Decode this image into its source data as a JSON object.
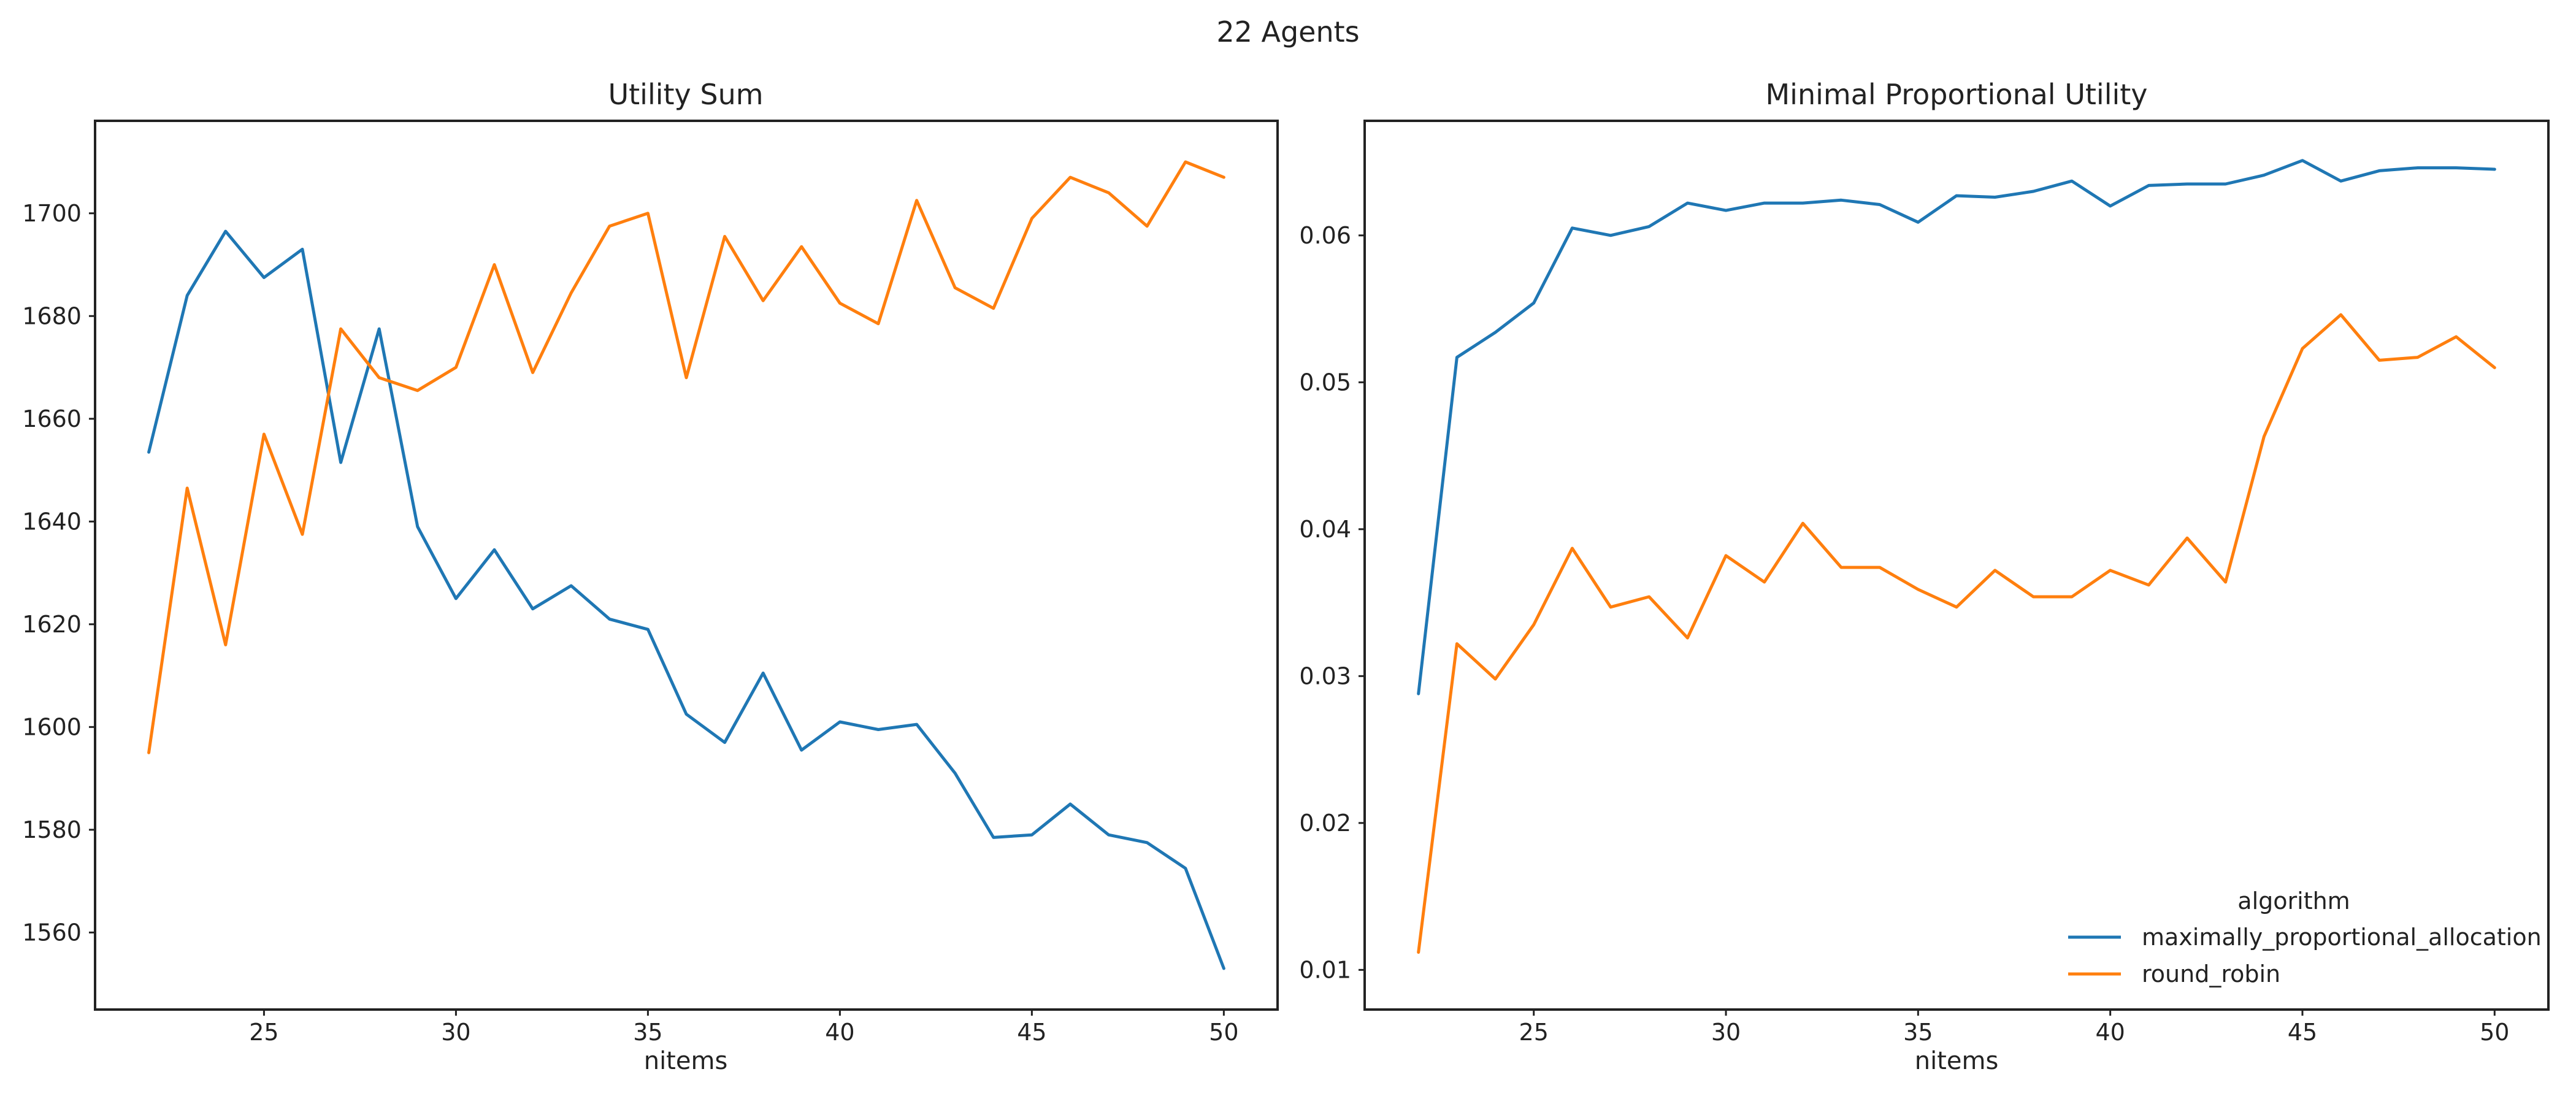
{
  "figure": {
    "suptitle": "22 Agents"
  },
  "colors": {
    "maximally_proportional_allocation": "#1f77b4",
    "round_robin": "#ff7f0e"
  },
  "chart_data": [
    {
      "type": "line",
      "title": "Utility Sum",
      "xlabel": "nitems",
      "ylabel": "",
      "xlim": [
        20.6,
        51.4
      ],
      "ylim": [
        1545,
        1718
      ],
      "xticks": [
        25,
        30,
        35,
        40,
        45,
        50
      ],
      "yticks": [
        1560,
        1580,
        1600,
        1620,
        1640,
        1660,
        1680,
        1700
      ],
      "grid": false,
      "x": [
        22,
        23,
        24,
        25,
        26,
        27,
        28,
        29,
        30,
        31,
        32,
        33,
        34,
        35,
        36,
        37,
        38,
        39,
        40,
        41,
        42,
        43,
        44,
        45,
        46,
        47,
        48,
        49,
        50
      ],
      "series": [
        {
          "name": "maximally_proportional_allocation",
          "values": [
            1653.5,
            1684,
            1696.5,
            1687.5,
            1693,
            1651.5,
            1677.5,
            1639,
            1625,
            1634.5,
            1623,
            1627.5,
            1621,
            1619,
            1602.5,
            1597,
            1610.5,
            1595.5,
            1601,
            1599.5,
            1600.5,
            1591,
            1578.5,
            1579,
            1585,
            1579,
            1577.5,
            1572.5,
            1553
          ]
        },
        {
          "name": "round_robin",
          "values": [
            1595,
            1646.5,
            1616,
            1657,
            1637.5,
            1677.5,
            1668,
            1665.5,
            1670,
            1690,
            1669,
            1684.5,
            1697.5,
            1700,
            1668,
            1695.5,
            1683,
            1693.5,
            1682.5,
            1678.5,
            1702.5,
            1685.5,
            1681.5,
            1699,
            1707,
            1704,
            1697.5,
            1710,
            1707
          ]
        }
      ]
    },
    {
      "type": "line",
      "title": "Minimal Proportional Utility",
      "xlabel": "nitems",
      "ylabel": "",
      "xlim": [
        20.6,
        51.4
      ],
      "ylim": [
        0.0073,
        0.0678
      ],
      "xticks": [
        25,
        30,
        35,
        40,
        45,
        50
      ],
      "yticks": [
        0.01,
        0.02,
        0.03,
        0.04,
        0.05,
        0.06
      ],
      "ytick_labels": [
        "0.01",
        "0.02",
        "0.03",
        "0.04",
        "0.05",
        "0.06"
      ],
      "grid": false,
      "legend": {
        "title": "algorithm",
        "position": "lower-right",
        "entries": [
          "maximally_proportional_allocation",
          "round_robin"
        ]
      },
      "x": [
        22,
        23,
        24,
        25,
        26,
        27,
        28,
        29,
        30,
        31,
        32,
        33,
        34,
        35,
        36,
        37,
        38,
        39,
        40,
        41,
        42,
        43,
        44,
        45,
        46,
        47,
        48,
        49,
        50
      ],
      "series": [
        {
          "name": "maximally_proportional_allocation",
          "values": [
            0.0288,
            0.0517,
            0.0534,
            0.0554,
            0.0605,
            0.06,
            0.0606,
            0.0622,
            0.0617,
            0.0622,
            0.0622,
            0.0624,
            0.0621,
            0.0609,
            0.0627,
            0.0626,
            0.063,
            0.0637,
            0.062,
            0.0634,
            0.0635,
            0.0635,
            0.0641,
            0.0651,
            0.0637,
            0.0644,
            0.0646,
            0.0646,
            0.0645
          ]
        },
        {
          "name": "round_robin",
          "values": [
            0.0112,
            0.0322,
            0.0298,
            0.0335,
            0.0387,
            0.0347,
            0.0354,
            0.0326,
            0.0382,
            0.0364,
            0.0404,
            0.0374,
            0.0374,
            0.0359,
            0.0347,
            0.0372,
            0.0354,
            0.0354,
            0.0372,
            0.0362,
            0.0394,
            0.0364,
            0.0463,
            0.0523,
            0.0546,
            0.0515,
            0.0517,
            0.0531,
            0.051
          ]
        }
      ]
    }
  ]
}
